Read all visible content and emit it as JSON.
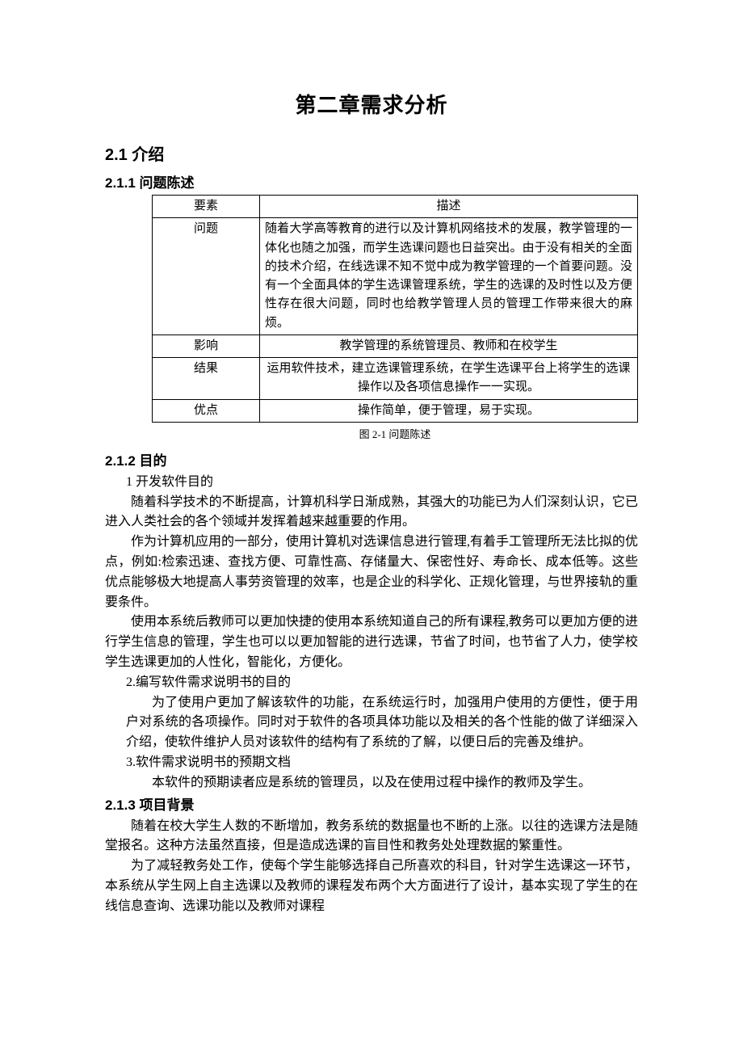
{
  "chapter_title": "第二章需求分析",
  "section_2_1": "2.1 介绍",
  "section_2_1_1": "2.1.1 问题陈述",
  "table": {
    "headers": {
      "col1": "要素",
      "col2": "描述"
    },
    "rows": {
      "r1": {
        "label": "问题",
        "desc": "随着大学高等教育的进行以及计算机网络技术的发展，教学管理的一体化也随之加强，而学生选课问题也日益突出。由于没有相关的全面的技术介绍，在线选课不知不觉中成为教学管理的一个首要问题。没有一个全面具体的学生选课管理系统，学生的选课的及时性以及方便性存在很大问题，同时也给教学管理人员的管理工作带来很大的麻烦。"
      },
      "r2": {
        "label": "影响",
        "desc": "教学管理的系统管理员、教师和在校学生"
      },
      "r3": {
        "label": "结果",
        "desc": "运用软件技术，建立选课管理系统，在学生选课平台上将学生的选课操作以及各项信息操作一一实现。"
      },
      "r4": {
        "label": "优点",
        "desc": "操作简单，便于管理，易于实现。"
      }
    },
    "caption": "图 2-1 问题陈述"
  },
  "section_2_1_2": "2.1.2 目的",
  "purpose": {
    "h1": "1 开发软件目的",
    "p1": "随着科学技术的不断提高，计算机科学日渐成熟，其强大的功能已为人们深刻认识，它已进入人类社会的各个领域并发挥着越来越重要的作用。",
    "p2": "作为计算机应用的一部分，使用计算机对选课信息进行管理,有着手工管理所无法比拟的优点，例如:检索迅速、查找方便、可靠性高、存储量大、保密性好、寿命长、成本低等。这些优点能够极大地提高人事劳资管理的效率，也是企业的科学化、正规化管理，与世界接轨的重要条件。",
    "p3": "使用本系统后教师可以更加快捷的使用本系统知道自己的所有课程,教务可以更加方便的进行学生信息的管理，学生也可以以更加智能的进行选课，节省了时间，也节省了人力，使学校学生选课更加的人性化，智能化，方便化。",
    "h2": "2.编写软件需求说明书的目的",
    "p4": "为了使用户更加了解该软件的功能，在系统运行时，加强用户使用的方便性，便于用户对系统的各项操作。同时对于软件的各项具体功能以及相关的各个性能的做了详细深入介绍，使软件维护人员对该软件的结构有了系统的了解，以便日后的完善及维护。",
    "h3": "3.软件需求说明书的预期文档",
    "p5": "本软件的预期读者应是系统的管理员，以及在使用过程中操作的教师及学生。"
  },
  "section_2_1_3": "2.1.3 项目背景",
  "background": {
    "p1": "随着在校大学生人数的不断增加，教务系统的数据量也不断的上涨。以往的选课方法是随堂报名。这种方法虽然直接，但是造成选课的盲目性和教务处处理数据的繁重性。",
    "p2": "为了减轻教务处工作，使每个学生能够选择自己所喜欢的科目，针对学生选课这一环节，本系统从学生网上自主选课以及教师的课程发布两个大方面进行了设计，基本实现了学生的在线信息查询、选课功能以及教师对课程"
  }
}
